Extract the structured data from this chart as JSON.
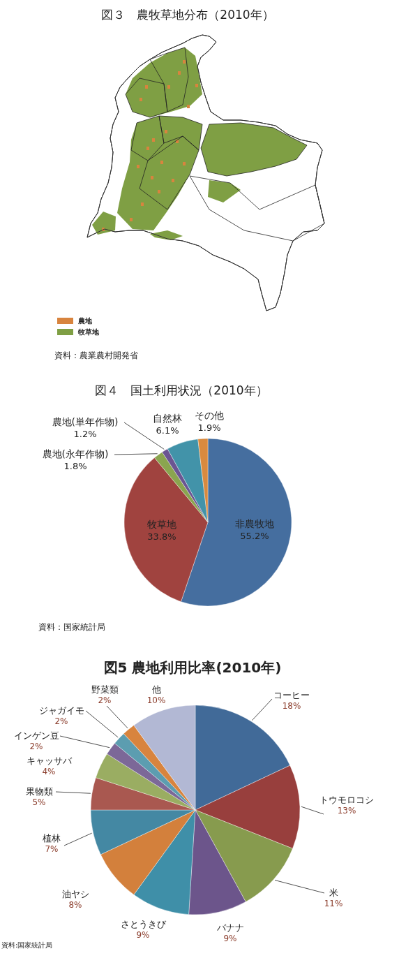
{
  "chart_data": [
    {
      "type": "other",
      "title": "図３　農牧草地分布（2010年）",
      "series": [
        {
          "name": "農地",
          "color": "#d8843e"
        },
        {
          "name": "牧草地",
          "color": "#7f9f44"
        }
      ],
      "legend": "bottom left",
      "annotations": [
        "資料：農業農村開発省"
      ]
    },
    {
      "type": "pie",
      "title": "図４　国土利用状況（2010年）",
      "categories": [
        "非農牧地",
        "牧草地",
        "農地(永年作物)",
        "農地(単年作物)",
        "自然林",
        "その他"
      ],
      "values": [
        55.2,
        33.8,
        1.8,
        1.2,
        6.1,
        1.9
      ],
      "value_labels": [
        "55.2%",
        "33.8%",
        "1.8%",
        "1.2%",
        "6.1%",
        "1.9%"
      ],
      "colors": [
        "#456e9f",
        "#a0433f",
        "#8aa54f",
        "#6b5592",
        "#4293a9",
        "#d98a3f"
      ],
      "annotations": [
        "資料：国家統計局"
      ]
    },
    {
      "type": "pie",
      "title": "図5 農地利用比率(2010年)",
      "categories": [
        "コーヒー",
        "トウモロコシ",
        "米",
        "バナナ",
        "さとうきび",
        "油ヤシ",
        "植林",
        "果物類",
        "キャッサバ",
        "インゲン豆",
        "ジャガイモ",
        "野菜類",
        "他"
      ],
      "values": [
        18,
        13,
        11,
        9,
        9,
        8,
        7,
        5,
        4,
        2,
        2,
        2,
        10
      ],
      "value_labels": [
        "18%",
        "13%",
        "11%",
        "9%",
        "9%",
        "8%",
        "7%",
        "5%",
        "4%",
        "2%",
        "2%",
        "2%",
        "10%"
      ],
      "colors": [
        "#416a98",
        "#983f3d",
        "#879b4e",
        "#6c558b",
        "#3f8fa8",
        "#d3803c",
        "#4488a3",
        "#a95850",
        "#9aad62",
        "#7c6898",
        "#5c9db0",
        "#d8843e",
        "#b2b8d4"
      ],
      "annotations": [
        "資料:国家統計局"
      ]
    }
  ]
}
